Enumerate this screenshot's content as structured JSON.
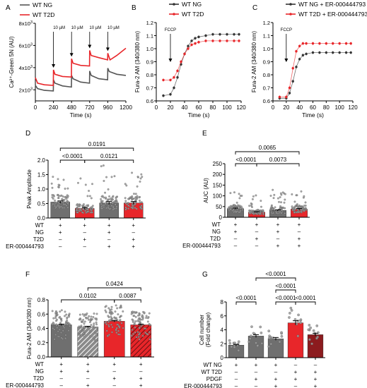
{
  "colors": {
    "black": "#000000",
    "red": "#e8262a",
    "grey": "#6f6f6f",
    "darkred": "#8c1b1e",
    "lightgrey": "#bdbdbd",
    "pink": "#f08a8c"
  },
  "signs": {
    "plus": "+",
    "minus": "–"
  },
  "chart_data": [
    {
      "panel": "A",
      "type": "line",
      "ylabel": "Ca²⁺-Green 5N (AU)",
      "xlabel": "Time (s)",
      "xlim": [
        0,
        1200
      ],
      "xticks": [
        0,
        240,
        480,
        720,
        960,
        1200
      ],
      "ylim": [
        1000,
        8000
      ],
      "yticks": [
        {
          "v": 2000,
          "m": "2x10",
          "e": "3"
        },
        {
          "v": 4000,
          "m": "4x10",
          "e": "3"
        },
        {
          "v": 6000,
          "m": "6x10",
          "e": "3"
        },
        {
          "v": 8000,
          "m": "8x10",
          "e": "3"
        }
      ],
      "legend": [
        "WT NG",
        "WT T2D"
      ],
      "annotations": [
        {
          "x": 240,
          "label": "10 µM"
        },
        {
          "x": 480,
          "label": "10 µM"
        },
        {
          "x": 720,
          "label": "10 µM"
        },
        {
          "x": 960,
          "label": "10 µM"
        }
      ],
      "series": [
        {
          "name": "WT NG",
          "color": "#555555",
          "points": [
            [
              0,
              2400
            ],
            [
              30,
              2100
            ],
            [
              120,
              1950
            ],
            [
              238,
              1900
            ],
            [
              240,
              2900
            ],
            [
              260,
              2600
            ],
            [
              360,
              2350
            ],
            [
              478,
              2250
            ],
            [
              480,
              3300
            ],
            [
              500,
              3000
            ],
            [
              600,
              2700
            ],
            [
              718,
              2600
            ],
            [
              720,
              3700
            ],
            [
              740,
              3300
            ],
            [
              840,
              3000
            ],
            [
              958,
              2900
            ],
            [
              960,
              3950
            ],
            [
              980,
              3650
            ],
            [
              1080,
              3400
            ],
            [
              1200,
              3300
            ]
          ]
        },
        {
          "name": "WT T2D",
          "color": "#e8262a",
          "points": [
            [
              0,
              3100
            ],
            [
              30,
              2600
            ],
            [
              120,
              2450
            ],
            [
              238,
              2400
            ],
            [
              240,
              3800
            ],
            [
              260,
              3400
            ],
            [
              360,
              3200
            ],
            [
              478,
              3150
            ],
            [
              480,
              4800
            ],
            [
              500,
              4400
            ],
            [
              600,
              4200
            ],
            [
              718,
              4150
            ],
            [
              720,
              5550
            ],
            [
              740,
              5100
            ],
            [
              840,
              4900
            ],
            [
              958,
              4700
            ],
            [
              960,
              5300
            ],
            [
              990,
              4700
            ],
            [
              1080,
              5100
            ],
            [
              1200,
              5750
            ]
          ]
        }
      ]
    },
    {
      "panel": "B",
      "type": "line",
      "ylabel": "Fura-2 AM (340/380 nm)",
      "xlabel": "Time (s)",
      "xlim": [
        0,
        120
      ],
      "xticks": [
        0,
        20,
        40,
        60,
        80,
        100,
        120
      ],
      "ylim": [
        0.6,
        1.2
      ],
      "yticks": [
        0.6,
        0.7,
        0.8,
        0.9,
        1.0,
        1.1,
        1.2
      ],
      "legend": [
        "WT NG",
        "WT T2D"
      ],
      "annotations": [
        {
          "x": 20,
          "label": "FCCP"
        }
      ],
      "series": [
        {
          "name": "WT NG",
          "color": "#333333",
          "points": [
            [
              10,
              0.64
            ],
            [
              20,
              0.65
            ],
            [
              25,
              0.7
            ],
            [
              30,
              0.78
            ],
            [
              35,
              0.88
            ],
            [
              40,
              0.96
            ],
            [
              45,
              1.02
            ],
            [
              50,
              1.06
            ],
            [
              55,
              1.08
            ],
            [
              60,
              1.09
            ],
            [
              70,
              1.1
            ],
            [
              80,
              1.11
            ],
            [
              90,
              1.11
            ],
            [
              100,
              1.11
            ],
            [
              110,
              1.11
            ],
            [
              117,
              1.11
            ]
          ]
        },
        {
          "name": "WT T2D",
          "color": "#e8262a",
          "points": [
            [
              10,
              0.76
            ],
            [
              20,
              0.76
            ],
            [
              25,
              0.78
            ],
            [
              30,
              0.83
            ],
            [
              35,
              0.9
            ],
            [
              40,
              0.96
            ],
            [
              45,
              1.0
            ],
            [
              50,
              1.03
            ],
            [
              55,
              1.04
            ],
            [
              60,
              1.05
            ],
            [
              70,
              1.06
            ],
            [
              80,
              1.06
            ],
            [
              90,
              1.06
            ],
            [
              100,
              1.06
            ],
            [
              110,
              1.06
            ],
            [
              117,
              1.06
            ]
          ]
        }
      ]
    },
    {
      "panel": "C",
      "type": "line",
      "ylabel": "Fura-2 AM (340/380 nm)",
      "xlabel": "Time (s)",
      "xlim": [
        0,
        120
      ],
      "xticks": [
        0,
        20,
        40,
        60,
        80,
        100,
        120
      ],
      "ylim": [
        0.6,
        1.2
      ],
      "yticks": [
        0.6,
        0.7,
        0.8,
        0.9,
        1.0,
        1.1,
        1.2
      ],
      "legend": [
        "WT NG + ER-000444793",
        "WT T2D + ER-000444793"
      ],
      "annotations": [
        {
          "x": 20,
          "label": "FCCP"
        }
      ],
      "series": [
        {
          "name": "WT NG + ER-000444793",
          "color": "#333333",
          "points": [
            [
              10,
              0.62
            ],
            [
              20,
              0.62
            ],
            [
              25,
              0.66
            ],
            [
              30,
              0.75
            ],
            [
              35,
              0.86
            ],
            [
              40,
              0.92
            ],
            [
              45,
              0.95
            ],
            [
              50,
              0.96
            ],
            [
              60,
              0.97
            ],
            [
              70,
              0.97
            ],
            [
              80,
              0.97
            ],
            [
              90,
              0.97
            ],
            [
              100,
              0.97
            ],
            [
              110,
              0.97
            ],
            [
              117,
              0.97
            ]
          ]
        },
        {
          "name": "WT T2D + ER-000444793",
          "color": "#e8262a",
          "points": [
            [
              10,
              0.63
            ],
            [
              20,
              0.63
            ],
            [
              25,
              0.7
            ],
            [
              30,
              0.85
            ],
            [
              35,
              0.98
            ],
            [
              40,
              1.02
            ],
            [
              45,
              1.04
            ],
            [
              50,
              1.04
            ],
            [
              60,
              1.04
            ],
            [
              70,
              1.04
            ],
            [
              80,
              1.04
            ],
            [
              90,
              1.04
            ],
            [
              100,
              1.04
            ],
            [
              110,
              1.04
            ],
            [
              117,
              1.04
            ]
          ]
        }
      ]
    },
    {
      "panel": "D",
      "type": "bar",
      "ylabel": "Peak Amplitude",
      "ylim": [
        0,
        2.0
      ],
      "yticks": [
        0.0,
        0.5,
        1.0,
        1.5,
        2.0
      ],
      "values": [
        0.55,
        0.33,
        0.52,
        0.52
      ],
      "errors": [
        0.04,
        0.03,
        0.05,
        0.05
      ],
      "scatter_max": [
        1.5,
        1.4,
        1.85,
        1.6
      ],
      "bar_styles": [
        "grey",
        "red",
        "grey",
        "red"
      ],
      "brackets": [
        {
          "from": 0,
          "to": 1,
          "level": 1,
          "label": "<0.0001"
        },
        {
          "from": 1,
          "to": 3,
          "level": 1,
          "label": "0.0121"
        },
        {
          "from": 0,
          "to": 3,
          "level": 2,
          "label": "0.0191"
        }
      ],
      "condition_rows": [
        {
          "label": "WT",
          "values": [
            "+",
            "+",
            "+",
            "+"
          ]
        },
        {
          "label": "NG",
          "values": [
            "+",
            "-",
            "+",
            "-"
          ]
        },
        {
          "label": "T2D",
          "values": [
            "-",
            "+",
            "-",
            "+"
          ]
        },
        {
          "label": "ER-000444793",
          "values": [
            "-",
            "-",
            "+",
            "+"
          ]
        }
      ]
    },
    {
      "panel": "E",
      "type": "bar",
      "ylabel": "AUC (AU)",
      "ylim": [
        0,
        250
      ],
      "yticks": [
        0,
        50,
        100,
        150,
        200,
        250
      ],
      "values": [
        40,
        24,
        32,
        38
      ],
      "errors": [
        3,
        2,
        3,
        3
      ],
      "scatter_max": [
        140,
        130,
        130,
        130
      ],
      "bar_styles": [
        "grey",
        "red",
        "grey",
        "red"
      ],
      "brackets": [
        {
          "from": 0,
          "to": 1,
          "level": 1,
          "label": "<0.0001"
        },
        {
          "from": 1,
          "to": 3,
          "level": 1,
          "label": "0.0073"
        },
        {
          "from": 0,
          "to": 3,
          "level": 2,
          "label": "0.0065"
        }
      ],
      "condition_rows": [
        {
          "label": "WT",
          "values": [
            "+",
            "+",
            "+",
            "+"
          ]
        },
        {
          "label": "NG",
          "values": [
            "+",
            "-",
            "+",
            "-"
          ]
        },
        {
          "label": "T2D",
          "values": [
            "-",
            "+",
            "-",
            "+"
          ]
        },
        {
          "label": "ER-000444793",
          "values": [
            "-",
            "-",
            "+",
            "+"
          ]
        }
      ]
    },
    {
      "panel": "F",
      "type": "bar",
      "ylabel": "Fura-2 AM (340/380 nm)",
      "ylim": [
        0.0,
        0.8
      ],
      "yticks": [
        0.0,
        0.2,
        0.4,
        0.6,
        0.8
      ],
      "values": [
        0.45,
        0.42,
        0.5,
        0.45
      ],
      "errors": [
        0.01,
        0.01,
        0.01,
        0.01
      ],
      "scatter_max": [
        0.6,
        0.58,
        0.66,
        0.6
      ],
      "bar_styles": [
        "grey",
        "grey-hatch",
        "red",
        "red-hatch"
      ],
      "brackets": [
        {
          "from": 0,
          "to": 2,
          "level": 1,
          "label": "0.0102"
        },
        {
          "from": 2,
          "to": 3,
          "level": 1,
          "label": "0.0087"
        },
        {
          "from": 1,
          "to": 3,
          "level": 2,
          "label": "0.0424"
        }
      ],
      "condition_rows": [
        {
          "label": "WT",
          "values": [
            "+",
            "+",
            "+",
            "+"
          ]
        },
        {
          "label": "NG",
          "values": [
            "+",
            "+",
            "-",
            "-"
          ]
        },
        {
          "label": "T2D",
          "values": [
            "-",
            "-",
            "+",
            "+"
          ]
        },
        {
          "label": "ER-000444793",
          "values": [
            "-",
            "+",
            "-",
            "+"
          ]
        }
      ]
    },
    {
      "panel": "G",
      "type": "bar",
      "ylabel": "Cell number (Fold change)",
      "ylim": [
        0,
        8
      ],
      "yticks": [
        0,
        2,
        4,
        6,
        8
      ],
      "values": [
        1.8,
        3.1,
        2.7,
        5.0,
        3.3
      ],
      "errors": [
        0.1,
        0.2,
        0.2,
        0.3,
        0.2
      ],
      "scatter_max": [
        2.0,
        4.0,
        3.3,
        6.3,
        3.8
      ],
      "bar_styles": [
        "grey",
        "grey",
        "grey",
        "red",
        "darkred"
      ],
      "brackets": [
        {
          "from": 0,
          "to": 1,
          "level": 1,
          "label": "<0.0001"
        },
        {
          "from": 2,
          "to": 3,
          "level": 1,
          "label": "<0.0001"
        },
        {
          "from": 3,
          "to": 4,
          "level": 1,
          "label": "<0.0001"
        },
        {
          "from": 2,
          "to": 3,
          "level": 2,
          "label": "<0.0001"
        },
        {
          "from": 1,
          "to": 3,
          "level": 3,
          "label": "<0.0001"
        }
      ],
      "condition_rows": [
        {
          "label": "WT NG",
          "values": [
            "+",
            "+",
            "+",
            "-",
            "-"
          ]
        },
        {
          "label": "WT T2D",
          "values": [
            "-",
            "-",
            "-",
            "+",
            "+"
          ]
        },
        {
          "label": "PDGF",
          "values": [
            "-",
            "+",
            "+",
            "+",
            "+"
          ]
        },
        {
          "label": "ER-000444793",
          "values": [
            "-",
            "-",
            "+",
            "-",
            "+"
          ]
        }
      ]
    }
  ]
}
